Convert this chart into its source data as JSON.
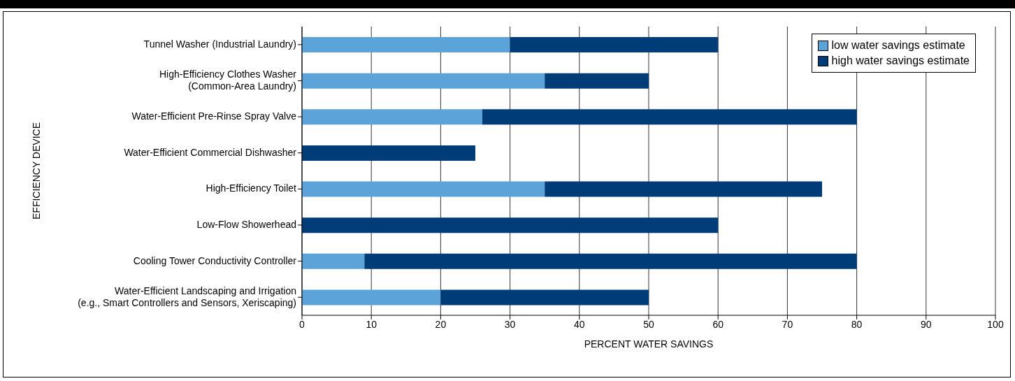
{
  "chart_data": {
    "type": "bar",
    "orientation": "horizontal",
    "stacked": true,
    "xlabel": "PERCENT WATER SAVINGS",
    "ylabel": "EFFICIENCY DEVICE",
    "categories": [
      "Tunnel Washer (Industrial Laundry)",
      "High-Efficiency Clothes Washer\n(Common-Area Laundry)",
      "Water-Efficient Pre-Rinse Spray Valve",
      "Water-Efficient Commercial Dishwasher",
      "High-Efficiency Toilet",
      "Low-Flow Showerhead",
      "Cooling Tower Conductivity Controller",
      "Water-Efficient Landscaping and Irrigation\n(e.g., Smart Controllers and Sensors, Xeriscaping)"
    ],
    "series": [
      {
        "name": "low water savings estimate",
        "color": "#5ba3d9",
        "values": [
          30,
          35,
          26,
          null,
          35,
          null,
          9,
          20
        ]
      },
      {
        "name": "high water savings estimate",
        "color": "#003d78",
        "values": [
          30,
          15,
          54,
          25,
          40,
          60,
          71,
          30
        ]
      }
    ],
    "xlim": [
      0,
      100
    ],
    "xticks": [
      0,
      10,
      20,
      30,
      40,
      50,
      60,
      70,
      80,
      90,
      100
    ],
    "grid": "x",
    "legend": "top right"
  }
}
